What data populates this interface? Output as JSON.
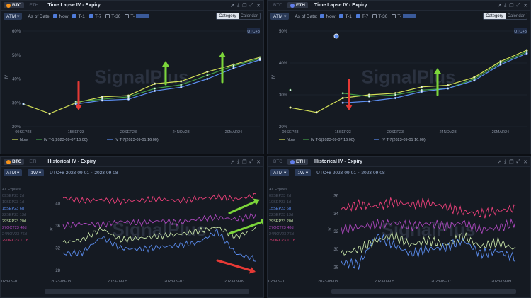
{
  "coins": {
    "btc": "BTC",
    "eth": "ETH"
  },
  "colors": {
    "btc": "#f7931a",
    "eth": "#627eea"
  },
  "icons": [
    "share-icon",
    "download-icon",
    "copy-icon",
    "expand-icon",
    "close-icon"
  ],
  "icon_glyphs": [
    "↗",
    "⤓",
    "❐",
    "⤢",
    "✕"
  ],
  "timelapse": {
    "title": "Time Lapse IV - Expiry",
    "atm": "ATM ▾",
    "as_of": "As of Date:",
    "opts": [
      "Now",
      "T-1",
      "T-7",
      "T-30",
      "T-"
    ],
    "cat": "Category",
    "cal": "Calendar",
    "utc": "UTC+8",
    "y_label": "IV",
    "legend": [
      "Now",
      "IV T-1(2023-09-07 16:00)",
      "IV T-7(2023-09-01 16:00)"
    ]
  },
  "historical": {
    "title": "Historical IV - Expiry",
    "atm": "ATM ▾",
    "tw": "1W ▾",
    "range": "UTC+8 2023-09-01 ~ 2023-09-08",
    "y_label": "IV"
  },
  "watermark": "SignalPlus",
  "chart_data": [
    {
      "type": "line",
      "title": "Time Lapse IV - Expiry",
      "coin": "BTC",
      "x_ticks": [
        "09SEP23",
        "15SEP23",
        "29SEP23",
        "24NOV23",
        "29MAR24"
      ],
      "y_ticks": [
        "20%",
        "30%",
        "40%",
        "50%",
        "60%"
      ],
      "ylim": [
        20,
        60
      ],
      "x": [
        0,
        1,
        2,
        3,
        4,
        5,
        6,
        7,
        8,
        9
      ],
      "series": [
        {
          "name": "Now",
          "color": "#d4e157",
          "values": [
            29.5,
            25.5,
            30,
            32.5,
            33,
            38,
            39,
            43,
            46,
            49
          ]
        },
        {
          "name": "IV T-1(2023-09-07 16:00)",
          "color": "#43a047",
          "values": [
            29.5,
            null,
            30.5,
            31.5,
            32.5,
            36,
            37.5,
            41.5,
            45.5,
            48.5
          ]
        },
        {
          "name": "IV T-7(2023-09-01 16:00)",
          "color": "#5b8def",
          "values": [
            29.5,
            null,
            29.5,
            31,
            31.5,
            35,
            36.5,
            40,
            44.5,
            48
          ]
        }
      ]
    },
    {
      "type": "line",
      "title": "Time Lapse IV - Expiry",
      "coin": "ETH",
      "x_ticks": [
        "09SEP23",
        "15SEP23",
        "29SEP23",
        "24NOV23",
        "29MAR24"
      ],
      "y_ticks": [
        "20%",
        "30%",
        "40%",
        "50%"
      ],
      "ylim": [
        20,
        50
      ],
      "x": [
        0,
        1,
        2,
        3,
        4,
        5,
        6,
        7,
        8,
        9
      ],
      "series": [
        {
          "name": "Now",
          "color": "#d4e157",
          "values": [
            26,
            24.5,
            29,
            30,
            30.5,
            32.5,
            33,
            35.5,
            40.5,
            44
          ]
        },
        {
          "name": "IV T-1(2023-09-07 16:00)",
          "color": "#43a047",
          "values": [
            31.5,
            null,
            30.5,
            29.5,
            30,
            31.5,
            32,
            35,
            40,
            43.5
          ]
        },
        {
          "name": "IV T-7(2023-09-01 16:00)",
          "color": "#5b8def",
          "values": [
            null,
            null,
            27.5,
            28,
            29,
            31,
            32,
            34.5,
            39.5,
            43
          ]
        }
      ]
    },
    {
      "type": "line",
      "title": "Historical IV - Expiry",
      "coin": "BTC",
      "x_ticks": [
        "2023-09-01",
        "2023-09-03",
        "2023-09-05",
        "2023-09-07",
        "2023-09-09"
      ],
      "y_ticks": [
        "28",
        "32",
        "36",
        "40"
      ],
      "ylim": [
        27,
        43
      ],
      "legend": [
        {
          "name": "All Expires",
          "color": "#6b7485"
        },
        {
          "name": "09SEP23 2d",
          "color": "#4a5262"
        },
        {
          "name": "10SEP23 1d",
          "color": "#4a5262"
        },
        {
          "name": "15SEP23 6d",
          "color": "#5b8def"
        },
        {
          "name": "22SEP23 13d",
          "color": "#4a5262"
        },
        {
          "name": "29SEP23 20d",
          "color": "#c5e1a5"
        },
        {
          "name": "27OCT23 48d",
          "color": "#ab47bc"
        },
        {
          "name": "24NOV23 76d",
          "color": "#4a5262"
        },
        {
          "name": "29DEC23 111d",
          "color": "#ec407a"
        }
      ],
      "series": [
        {
          "name": "29DEC23 111d",
          "color": "#ec407a",
          "values": [
            41,
            40.5,
            40.7,
            40.4,
            40.6,
            40.8,
            40.5,
            40.9,
            41.2,
            40.8,
            41.5
          ]
        },
        {
          "name": "27OCT23 48d",
          "color": "#ab47bc",
          "values": [
            36,
            36.4,
            36.2,
            36.8,
            36.5,
            36.9,
            36.6,
            37.2,
            37.5,
            37.2,
            37.9
          ]
        },
        {
          "name": "29SEP23 20d",
          "color": "#c5e1a5",
          "values": [
            33,
            33.5,
            35.5,
            33.5,
            33.8,
            34.2,
            34.5,
            35,
            35.8,
            34,
            35.5
          ]
        },
        {
          "name": "15SEP23 6d",
          "color": "#5b8def",
          "values": [
            31,
            31.2,
            34,
            32,
            31.8,
            32.2,
            32.5,
            33,
            35,
            31,
            30
          ]
        }
      ]
    },
    {
      "type": "line",
      "title": "Historical IV - Expiry",
      "coin": "ETH",
      "x_ticks": [
        "2023-09-01",
        "2023-09-03",
        "2023-09-05",
        "2023-09-07",
        "2023-09-09"
      ],
      "y_ticks": [
        "28",
        "30",
        "32",
        "34",
        "36"
      ],
      "ylim": [
        27,
        37
      ],
      "legend": [
        {
          "name": "All Expires",
          "color": "#6b7485"
        },
        {
          "name": "09SEP23 2d",
          "color": "#4a5262"
        },
        {
          "name": "10SEP23 1d",
          "color": "#4a5262"
        },
        {
          "name": "15SEP23 6d",
          "color": "#5b8def"
        },
        {
          "name": "22SEP23 13d",
          "color": "#4a5262"
        },
        {
          "name": "29SEP23 20d",
          "color": "#c5e1a5"
        },
        {
          "name": "27OCT23 48d",
          "color": "#ab47bc"
        },
        {
          "name": "24NOV23 76d",
          "color": "#4a5262"
        },
        {
          "name": "29DEC23 111d",
          "color": "#ec407a"
        }
      ],
      "series": [
        {
          "name": "29DEC23 111d",
          "color": "#ec407a",
          "values": [
            34.5,
            35,
            34.8,
            35.3,
            35,
            35.2,
            34.8,
            34.2,
            34,
            34.3,
            34.6
          ]
        },
        {
          "name": "27OCT23 48d",
          "color": "#ab47bc",
          "values": [
            32.2,
            32.5,
            32.8,
            33,
            32.6,
            32.9,
            32.6,
            33,
            32.2,
            32.4,
            33
          ]
        },
        {
          "name": "29SEP23 20d",
          "color": "#c5e1a5",
          "values": [
            29.5,
            30,
            31,
            31.5,
            30.5,
            31,
            30.5,
            31.5,
            30.3,
            30.8,
            30
          ]
        },
        {
          "name": "15SEP23 6d",
          "color": "#5b8def",
          "values": [
            28.5,
            28.3,
            31.5,
            30.5,
            29.5,
            30,
            30.2,
            31,
            29.5,
            29.8,
            29
          ]
        }
      ]
    }
  ]
}
